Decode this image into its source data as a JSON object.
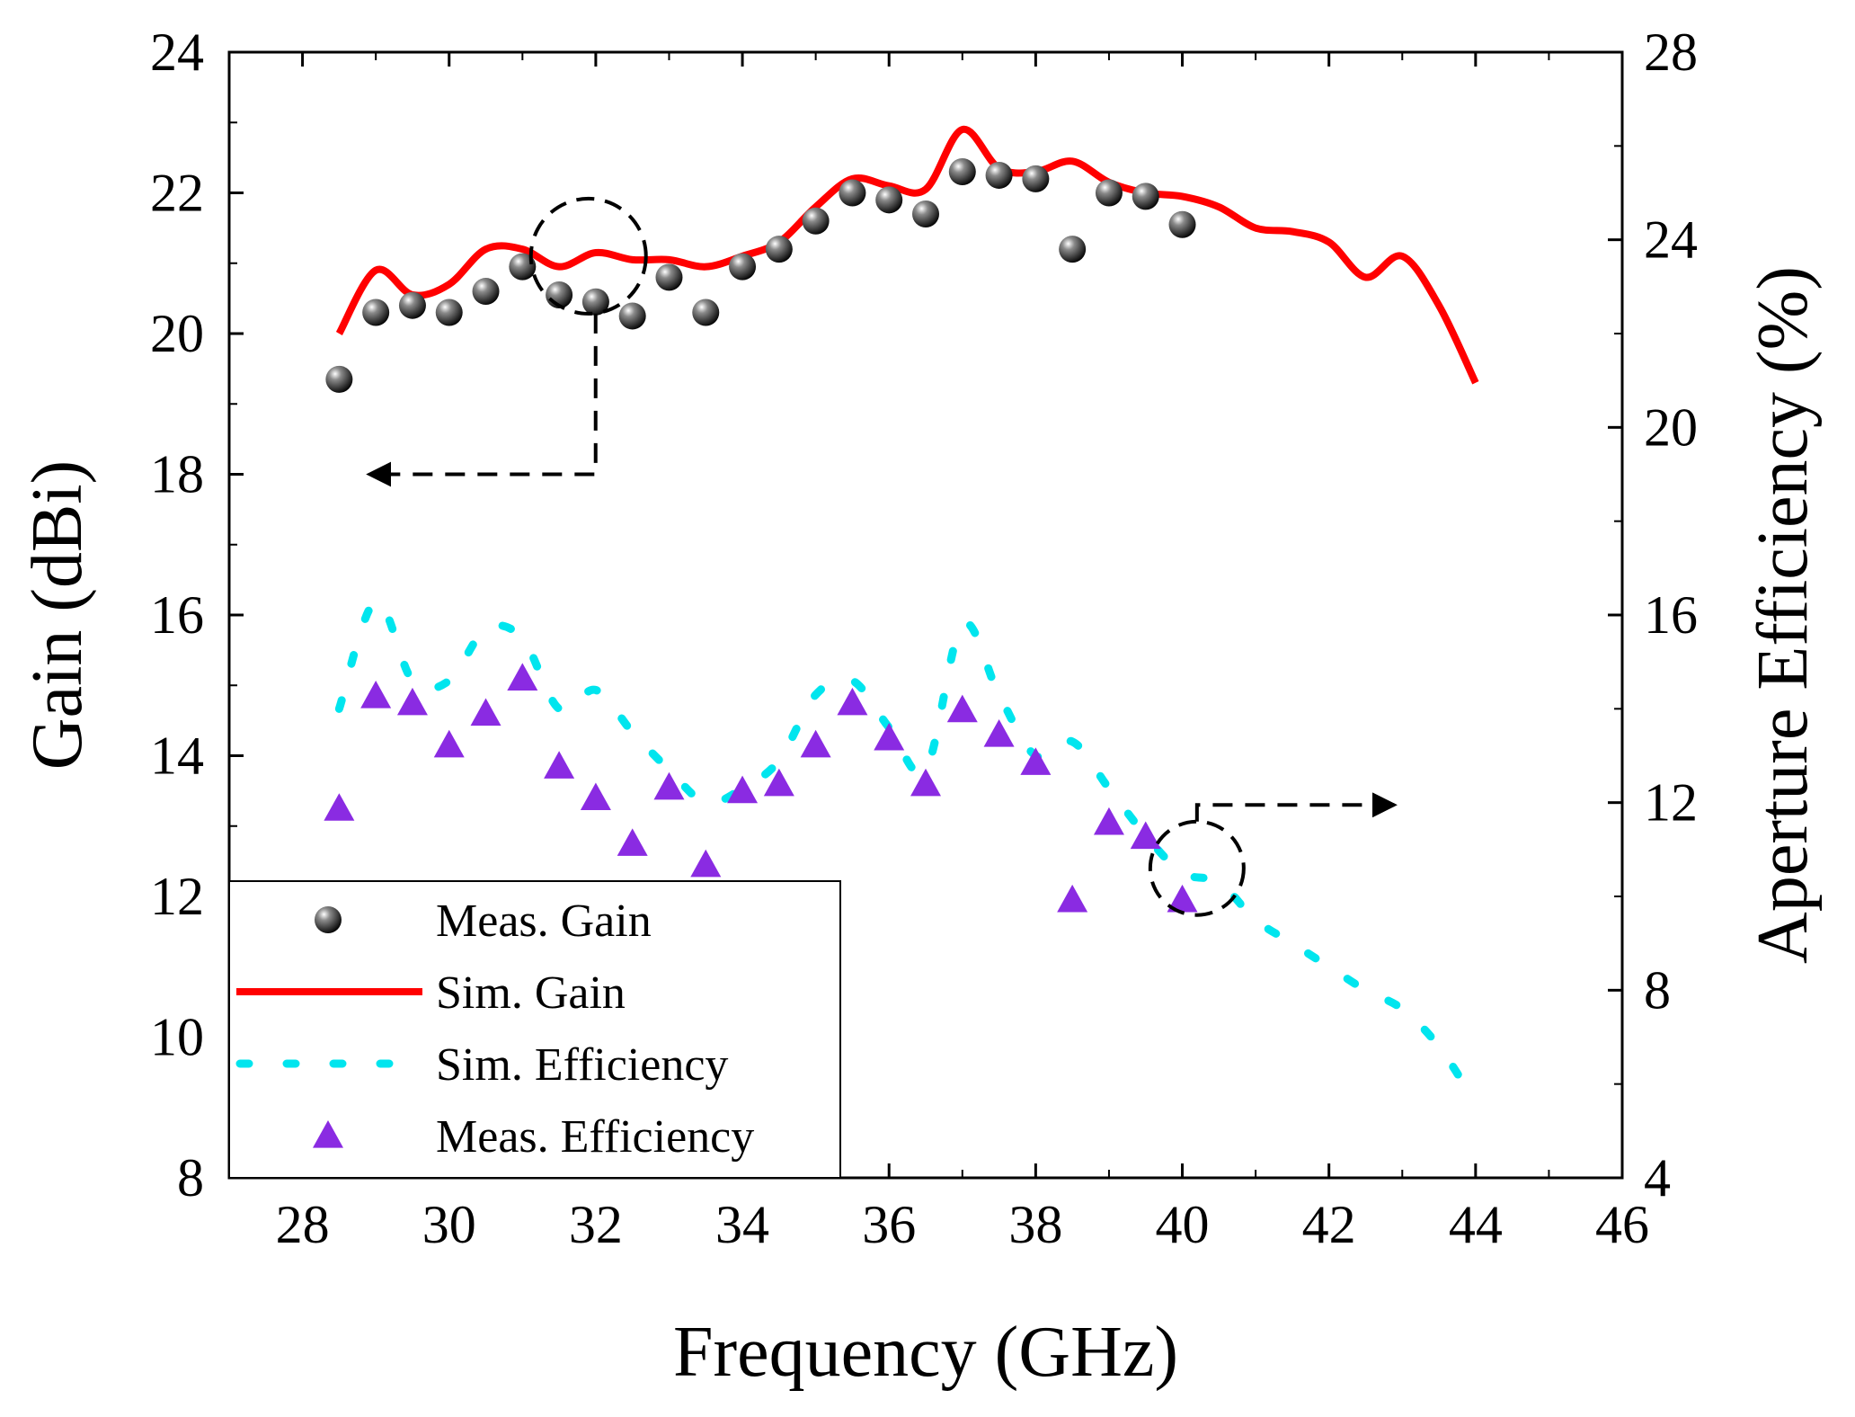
{
  "chart_data": {
    "type": "line",
    "xlabel": "Frequency (GHz)",
    "ylabel_left": "Gain (dBi)",
    "ylabel_right": "Aperture Efficiency (%)",
    "xlim": [
      27,
      46
    ],
    "ylim_left": [
      8,
      24
    ],
    "ylim_right": [
      4,
      28
    ],
    "x_ticks": [
      28,
      30,
      32,
      34,
      36,
      38,
      40,
      42,
      44,
      46
    ],
    "y_ticks_left": [
      8,
      10,
      12,
      14,
      16,
      18,
      20,
      22,
      24
    ],
    "y_ticks_right": [
      4,
      8,
      12,
      16,
      20,
      24,
      28
    ],
    "colors": {
      "meas_gain": "#000000",
      "sim_gain": "#ff0000",
      "sim_eff": "#00e5ee",
      "meas_eff": "#8a2be2"
    },
    "series": [
      {
        "name": "Meas. Gain",
        "axis": "left",
        "style": "markers-sphere",
        "x": [
          28.5,
          29,
          29.5,
          30,
          30.5,
          31,
          31.5,
          32,
          32.5,
          33,
          33.5,
          34,
          34.5,
          35,
          35.5,
          36,
          36.5,
          37,
          37.5,
          38,
          38.5,
          39,
          39.5,
          40
        ],
        "y": [
          19.35,
          20.3,
          20.4,
          20.3,
          20.6,
          20.95,
          20.55,
          20.45,
          20.25,
          20.8,
          20.3,
          20.95,
          21.2,
          21.6,
          22.0,
          21.9,
          21.7,
          22.3,
          22.25,
          22.2,
          21.2,
          22.0,
          21.95,
          21.55
        ]
      },
      {
        "name": "Sim. Gain",
        "axis": "left",
        "style": "solid-line",
        "x": [
          28.5,
          29,
          29.5,
          30,
          30.5,
          31,
          31.5,
          32,
          32.5,
          33,
          33.5,
          34,
          34.5,
          35,
          35.5,
          36,
          36.5,
          37,
          37.5,
          38,
          38.5,
          39,
          39.5,
          40,
          40.5,
          41,
          41.5,
          42,
          42.5,
          43,
          43.5,
          44
        ],
        "y": [
          20.0,
          20.9,
          20.55,
          20.7,
          21.2,
          21.2,
          20.95,
          21.15,
          21.05,
          21.05,
          20.95,
          21.1,
          21.3,
          21.8,
          22.2,
          22.1,
          22.05,
          22.9,
          22.35,
          22.3,
          22.45,
          22.15,
          22.0,
          21.95,
          21.8,
          21.5,
          21.45,
          21.3,
          20.8,
          21.1,
          20.4,
          19.3
        ]
      },
      {
        "name": "Sim. Efficiency",
        "axis": "right",
        "style": "dotted-line",
        "x": [
          28.5,
          29,
          29.5,
          30,
          30.5,
          31,
          31.5,
          32,
          32.5,
          33,
          33.5,
          34,
          34.5,
          35,
          35.5,
          36,
          36.5,
          37,
          37.5,
          38,
          38.5,
          39,
          39.5,
          40,
          40.5,
          41,
          41.5,
          42,
          42.5,
          43,
          43.5,
          44
        ],
        "y": [
          14.0,
          16.3,
          14.6,
          14.6,
          15.7,
          15.5,
          14.0,
          14.4,
          13.5,
          12.7,
          12.0,
          12.3,
          12.9,
          14.3,
          14.6,
          13.6,
          12.7,
          15.8,
          14.3,
          13.0,
          13.3,
          12.3,
          11.3,
          10.5,
          10.3,
          9.5,
          9.0,
          8.5,
          8.0,
          7.6,
          6.8,
          5.6
        ]
      },
      {
        "name": "Meas. Efficiency",
        "axis": "left",
        "style": "markers-triangle",
        "x": [
          28.5,
          29,
          29.5,
          30,
          30.5,
          31,
          31.5,
          32,
          32.5,
          33,
          33.5,
          34,
          34.5,
          35,
          35.5,
          36,
          36.5,
          37,
          37.5,
          38,
          38.5,
          39,
          39.5,
          40
        ],
        "y": [
          13.25,
          14.85,
          14.75,
          14.15,
          14.6,
          15.1,
          13.85,
          13.4,
          12.75,
          13.55,
          12.45,
          13.5,
          13.6,
          14.15,
          14.75,
          14.25,
          13.6,
          14.65,
          14.3,
          13.9,
          11.95,
          13.05,
          12.85,
          11.95
        ]
      }
    ],
    "annotations": [
      {
        "type": "dashed-circle",
        "center": [
          31.9,
          21.1
        ],
        "refers_to": "gain series",
        "arrow_points_to": "left axis"
      },
      {
        "type": "dashed-circle",
        "center": [
          40.2,
          12.4
        ],
        "refers_to": "efficiency series",
        "arrow_points_to": "right axis"
      }
    ],
    "legend_position": "bottom-left"
  }
}
